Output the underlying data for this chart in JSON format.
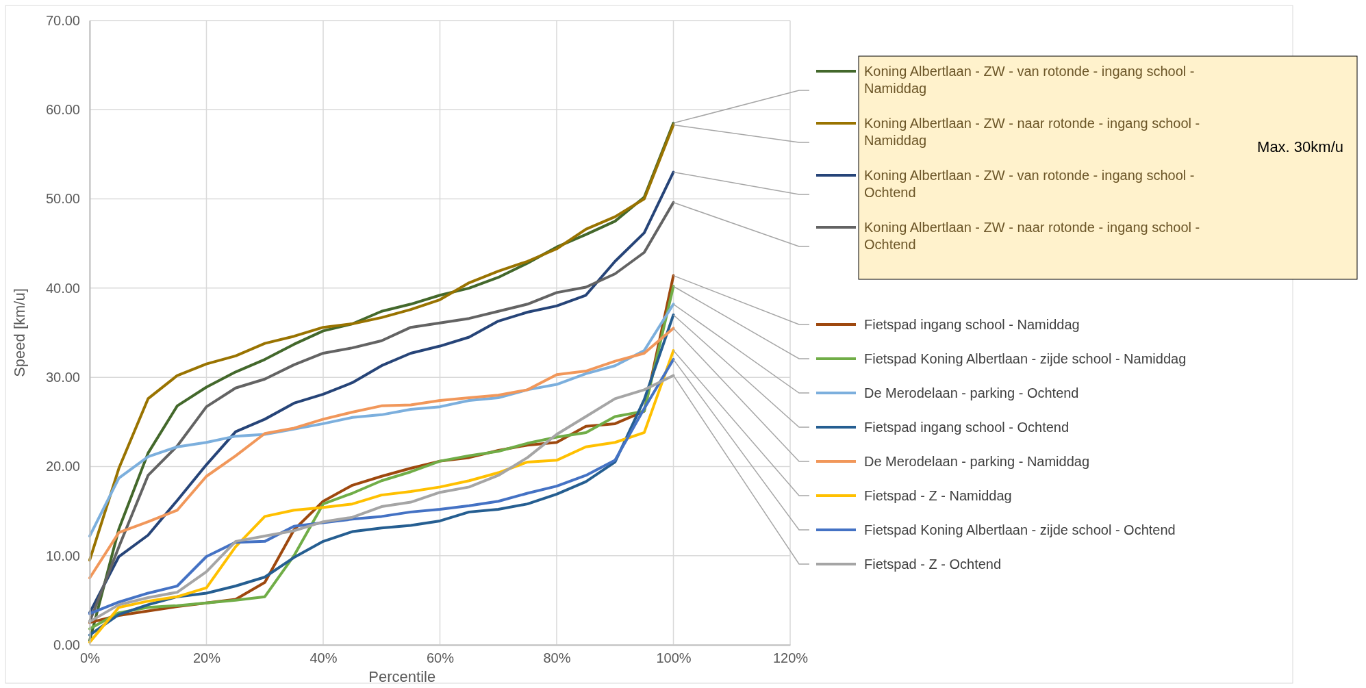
{
  "chart_data": {
    "type": "line",
    "xlabel": "Percentile",
    "ylabel": "Speed [km/u]",
    "x": [
      0,
      5,
      10,
      15,
      20,
      25,
      30,
      35,
      40,
      45,
      50,
      55,
      60,
      65,
      70,
      75,
      80,
      85,
      90,
      95,
      100
    ],
    "xlim": [
      0,
      120
    ],
    "xticks": [
      {
        "value": 0,
        "label": "0%"
      },
      {
        "value": 20,
        "label": "20%"
      },
      {
        "value": 40,
        "label": "40%"
      },
      {
        "value": 60,
        "label": "60%"
      },
      {
        "value": 80,
        "label": "80%"
      },
      {
        "value": 100,
        "label": "100%"
      },
      {
        "value": 120,
        "label": "120%"
      }
    ],
    "ylim": [
      0,
      70
    ],
    "yticks": [
      {
        "value": 0,
        "label": "0.00"
      },
      {
        "value": 10,
        "label": "10.00"
      },
      {
        "value": 20,
        "label": "20.00"
      },
      {
        "value": 30,
        "label": "30.00"
      },
      {
        "value": 40,
        "label": "40.00"
      },
      {
        "value": 50,
        "label": "50.00"
      },
      {
        "value": 60,
        "label": "60.00"
      },
      {
        "value": 70,
        "label": "70.00"
      }
    ],
    "grid": true,
    "legend": "right",
    "marker": "none",
    "line_style": "solid",
    "annotations": [
      "Max. 30km/u"
    ],
    "series": [
      {
        "name": "Koning Albertlaan - ZW - van rotonde - ingang school - Namiddag",
        "color": "#43682b",
        "values": [
          0.5,
          13,
          21.5,
          26.8,
          28.9,
          30.6,
          32,
          33.7,
          35.2,
          36,
          37.4,
          38.2,
          39.2,
          40,
          41.2,
          42.8,
          44.6,
          46,
          47.5,
          50.2,
          58.5
        ]
      },
      {
        "name": "Koning Albertlaan - ZW - naar rotonde - ingang school - Namiddag",
        "color": "#997300",
        "values": [
          9.5,
          19.8,
          27.6,
          30.2,
          31.5,
          32.4,
          33.8,
          34.6,
          35.6,
          36,
          36.7,
          37.6,
          38.7,
          40.6,
          41.9,
          43,
          44.4,
          46.6,
          48,
          50,
          58.3
        ]
      },
      {
        "name": "Koning Albertlaan - ZW - van rotonde - ingang school - Ochtend",
        "color": "#264478",
        "values": [
          3.6,
          9.9,
          12.3,
          16.2,
          20.2,
          23.9,
          25.3,
          27.1,
          28.1,
          29.4,
          31.3,
          32.7,
          33.5,
          34.5,
          36.3,
          37.3,
          38,
          39.2,
          43,
          46.2,
          53
        ]
      },
      {
        "name": "Koning Albertlaan - ZW - naar rotonde - ingang school - Ochtend",
        "color": "#636363",
        "values": [
          2.6,
          11,
          19,
          22.3,
          26.7,
          28.8,
          29.8,
          31.4,
          32.7,
          33.3,
          34.1,
          35.6,
          36.1,
          36.6,
          37.4,
          38.2,
          39.5,
          40.1,
          41.6,
          44,
          49.6
        ]
      },
      {
        "name": "Fietspad ingang school - Namiddag",
        "color": "#9e480e",
        "values": [
          2.5,
          3.3,
          3.8,
          4.3,
          4.7,
          5.1,
          7,
          12.9,
          16.1,
          17.9,
          18.9,
          19.8,
          20.6,
          21,
          21.8,
          22.4,
          22.7,
          24.5,
          24.8,
          26.2,
          41.4
        ]
      },
      {
        "name": "Fietspad Koning Albertlaan - zijde school - Namiddag",
        "color": "#70ad47",
        "values": [
          1.8,
          3.6,
          4.2,
          4.4,
          4.7,
          5,
          5.4,
          10,
          15.8,
          17,
          18.4,
          19.4,
          20.6,
          21.2,
          21.7,
          22.6,
          23.3,
          23.8,
          25.6,
          26.2,
          40.2
        ]
      },
      {
        "name": "De Merodelaan - parking - Ochtend",
        "color": "#7cafdd",
        "values": [
          12.2,
          18.7,
          21.1,
          22.2,
          22.7,
          23.4,
          23.6,
          24.2,
          24.8,
          25.5,
          25.8,
          26.4,
          26.7,
          27.4,
          27.7,
          28.6,
          29.2,
          30.4,
          31.3,
          33,
          38.2
        ]
      },
      {
        "name": "Fietspad ingang school - Ochtend",
        "color": "#255e91",
        "values": [
          1.1,
          3.4,
          4.5,
          5.4,
          5.8,
          6.6,
          7.6,
          9.8,
          11.6,
          12.7,
          13.1,
          13.4,
          13.9,
          14.9,
          15.2,
          15.8,
          16.9,
          18.3,
          20.5,
          27.5,
          37
        ]
      },
      {
        "name": "De Merodelaan - parking - Namiddag",
        "color": "#f1975a",
        "values": [
          7.5,
          12.6,
          13.8,
          15.1,
          18.9,
          21.2,
          23.7,
          24.3,
          25.3,
          26.1,
          26.8,
          26.9,
          27.4,
          27.7,
          28,
          28.6,
          30.3,
          30.7,
          31.8,
          32.7,
          35.5
        ]
      },
      {
        "name": "Fietspad - Z - Namiddag",
        "color": "#ffc000",
        "values": [
          0.3,
          4.2,
          4.9,
          5.4,
          6.4,
          11,
          14.4,
          15.1,
          15.4,
          15.8,
          16.8,
          17.2,
          17.7,
          18.4,
          19.3,
          20.5,
          20.7,
          22.2,
          22.7,
          23.8,
          33
        ]
      },
      {
        "name": "Fietspad Koning Albertlaan - zijde school - Ochtend",
        "color": "#4472c4",
        "values": [
          3.5,
          4.8,
          5.8,
          6.6,
          9.9,
          11.5,
          11.6,
          13.3,
          13.7,
          14.1,
          14.4,
          14.9,
          15.2,
          15.6,
          16.1,
          17,
          17.8,
          19,
          20.7,
          26.5,
          32
        ]
      },
      {
        "name": "Fietspad - Z - Ochtend",
        "color": "#a5a5a5",
        "values": [
          2.6,
          4.5,
          5.3,
          5.9,
          8.2,
          11.6,
          12.2,
          12.8,
          13.8,
          14.3,
          15.5,
          16,
          17.1,
          17.7,
          19,
          21,
          23.6,
          25.6,
          27.6,
          28.6,
          30.2
        ]
      }
    ]
  }
}
